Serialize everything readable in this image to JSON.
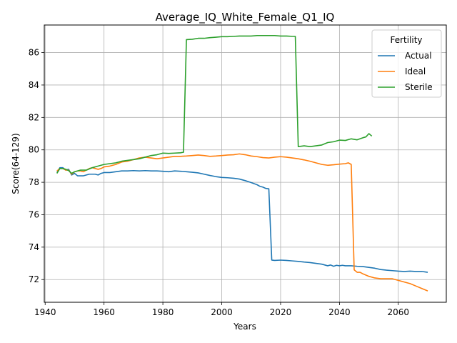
{
  "chart_data": {
    "type": "line",
    "title": "Average_IQ_White_Female_Q1_IQ",
    "xlabel": "Years",
    "ylabel": "Score(64-129)",
    "xlim": [
      1939.7,
      2076.3
    ],
    "ylim": [
      70.6,
      87.7
    ],
    "x_ticks": [
      1940,
      1960,
      1980,
      2000,
      2020,
      2040,
      2060
    ],
    "y_ticks": [
      72,
      74,
      76,
      78,
      80,
      82,
      84,
      86
    ],
    "grid": true,
    "legend": {
      "title": "Fertility",
      "placement": "top-right"
    },
    "series": [
      {
        "name": "Actual",
        "color": "#1f77b4",
        "points": [
          [
            1944,
            78.6
          ],
          [
            1945,
            78.9
          ],
          [
            1946,
            78.9
          ],
          [
            1947,
            78.75
          ],
          [
            1948,
            78.8
          ],
          [
            1949,
            78.45
          ],
          [
            1950,
            78.55
          ],
          [
            1951,
            78.4
          ],
          [
            1952,
            78.4
          ],
          [
            1953,
            78.4
          ],
          [
            1954,
            78.45
          ],
          [
            1955,
            78.5
          ],
          [
            1956,
            78.5
          ],
          [
            1957,
            78.5
          ],
          [
            1958,
            78.45
          ],
          [
            1959,
            78.55
          ],
          [
            1960,
            78.6
          ],
          [
            1962,
            78.6
          ],
          [
            1964,
            78.65
          ],
          [
            1966,
            78.7
          ],
          [
            1968,
            78.7
          ],
          [
            1970,
            78.72
          ],
          [
            1972,
            78.7
          ],
          [
            1974,
            78.72
          ],
          [
            1976,
            78.7
          ],
          [
            1978,
            78.7
          ],
          [
            1980,
            78.68
          ],
          [
            1982,
            78.65
          ],
          [
            1984,
            78.7
          ],
          [
            1986,
            78.68
          ],
          [
            1988,
            78.65
          ],
          [
            1990,
            78.62
          ],
          [
            1992,
            78.58
          ],
          [
            1994,
            78.5
          ],
          [
            1996,
            78.42
          ],
          [
            1998,
            78.35
          ],
          [
            2000,
            78.3
          ],
          [
            2002,
            78.28
          ],
          [
            2004,
            78.25
          ],
          [
            2006,
            78.2
          ],
          [
            2008,
            78.1
          ],
          [
            2010,
            77.98
          ],
          [
            2012,
            77.85
          ],
          [
            2013,
            77.75
          ],
          [
            2014,
            77.7
          ],
          [
            2015,
            77.62
          ],
          [
            2016,
            77.6
          ],
          [
            2017,
            73.2
          ],
          [
            2018,
            73.18
          ],
          [
            2020,
            73.2
          ],
          [
            2022,
            73.18
          ],
          [
            2024,
            73.15
          ],
          [
            2026,
            73.12
          ],
          [
            2028,
            73.08
          ],
          [
            2030,
            73.05
          ],
          [
            2032,
            73.0
          ],
          [
            2034,
            72.95
          ],
          [
            2035,
            72.9
          ],
          [
            2036,
            72.85
          ],
          [
            2037,
            72.9
          ],
          [
            2038,
            72.82
          ],
          [
            2039,
            72.88
          ],
          [
            2040,
            72.85
          ],
          [
            2041,
            72.88
          ],
          [
            2042,
            72.85
          ],
          [
            2044,
            72.85
          ],
          [
            2046,
            72.82
          ],
          [
            2048,
            72.8
          ],
          [
            2050,
            72.75
          ],
          [
            2052,
            72.7
          ],
          [
            2054,
            72.62
          ],
          [
            2056,
            72.58
          ],
          [
            2058,
            72.55
          ],
          [
            2060,
            72.52
          ],
          [
            2062,
            72.5
          ],
          [
            2064,
            72.52
          ],
          [
            2066,
            72.5
          ],
          [
            2068,
            72.5
          ],
          [
            2070,
            72.45
          ]
        ]
      },
      {
        "name": "Ideal",
        "color": "#ff7f0e",
        "points": [
          [
            1944,
            78.7
          ],
          [
            1945,
            78.85
          ],
          [
            1946,
            78.85
          ],
          [
            1947,
            78.75
          ],
          [
            1948,
            78.75
          ],
          [
            1949,
            78.5
          ],
          [
            1950,
            78.65
          ],
          [
            1951,
            78.7
          ],
          [
            1952,
            78.7
          ],
          [
            1953,
            78.65
          ],
          [
            1954,
            78.75
          ],
          [
            1955,
            78.85
          ],
          [
            1956,
            78.9
          ],
          [
            1957,
            78.85
          ],
          [
            1958,
            78.8
          ],
          [
            1959,
            78.85
          ],
          [
            1960,
            78.95
          ],
          [
            1962,
            79.0
          ],
          [
            1964,
            79.1
          ],
          [
            1966,
            79.25
          ],
          [
            1968,
            79.3
          ],
          [
            1970,
            79.4
          ],
          [
            1972,
            79.5
          ],
          [
            1974,
            79.55
          ],
          [
            1976,
            79.5
          ],
          [
            1978,
            79.45
          ],
          [
            1980,
            79.5
          ],
          [
            1982,
            79.55
          ],
          [
            1984,
            79.6
          ],
          [
            1986,
            79.6
          ],
          [
            1988,
            79.62
          ],
          [
            1990,
            79.65
          ],
          [
            1992,
            79.68
          ],
          [
            1994,
            79.65
          ],
          [
            1996,
            79.6
          ],
          [
            1998,
            79.62
          ],
          [
            2000,
            79.65
          ],
          [
            2002,
            79.68
          ],
          [
            2004,
            79.7
          ],
          [
            2006,
            79.75
          ],
          [
            2008,
            79.7
          ],
          [
            2010,
            79.62
          ],
          [
            2012,
            79.58
          ],
          [
            2014,
            79.52
          ],
          [
            2016,
            79.5
          ],
          [
            2018,
            79.55
          ],
          [
            2020,
            79.58
          ],
          [
            2022,
            79.55
          ],
          [
            2024,
            79.5
          ],
          [
            2026,
            79.45
          ],
          [
            2028,
            79.38
          ],
          [
            2030,
            79.3
          ],
          [
            2032,
            79.2
          ],
          [
            2034,
            79.1
          ],
          [
            2036,
            79.05
          ],
          [
            2038,
            79.08
          ],
          [
            2040,
            79.12
          ],
          [
            2042,
            79.15
          ],
          [
            2043,
            79.2
          ],
          [
            2044,
            79.1
          ],
          [
            2045,
            72.6
          ],
          [
            2046,
            72.45
          ],
          [
            2047,
            72.45
          ],
          [
            2048,
            72.35
          ],
          [
            2050,
            72.2
          ],
          [
            2052,
            72.1
          ],
          [
            2054,
            72.05
          ],
          [
            2056,
            72.05
          ],
          [
            2058,
            72.05
          ],
          [
            2060,
            71.95
          ],
          [
            2062,
            71.85
          ],
          [
            2064,
            71.75
          ],
          [
            2066,
            71.6
          ],
          [
            2068,
            71.45
          ],
          [
            2070,
            71.3
          ]
        ]
      },
      {
        "name": "Sterile",
        "color": "#2ca02c",
        "points": [
          [
            1944,
            78.55
          ],
          [
            1945,
            78.85
          ],
          [
            1946,
            78.85
          ],
          [
            1947,
            78.8
          ],
          [
            1948,
            78.72
          ],
          [
            1949,
            78.55
          ],
          [
            1950,
            78.65
          ],
          [
            1952,
            78.75
          ],
          [
            1954,
            78.75
          ],
          [
            1956,
            78.9
          ],
          [
            1958,
            79.0
          ],
          [
            1960,
            79.1
          ],
          [
            1962,
            79.15
          ],
          [
            1964,
            79.2
          ],
          [
            1966,
            79.3
          ],
          [
            1968,
            79.35
          ],
          [
            1970,
            79.4
          ],
          [
            1972,
            79.45
          ],
          [
            1974,
            79.55
          ],
          [
            1976,
            79.65
          ],
          [
            1978,
            79.7
          ],
          [
            1980,
            79.8
          ],
          [
            1982,
            79.78
          ],
          [
            1984,
            79.8
          ],
          [
            1986,
            79.82
          ],
          [
            1987,
            79.85
          ],
          [
            1988,
            86.8
          ],
          [
            1990,
            86.82
          ],
          [
            1992,
            86.88
          ],
          [
            1994,
            86.88
          ],
          [
            1996,
            86.92
          ],
          [
            1998,
            86.95
          ],
          [
            2000,
            86.98
          ],
          [
            2002,
            86.98
          ],
          [
            2004,
            87.0
          ],
          [
            2006,
            87.02
          ],
          [
            2008,
            87.02
          ],
          [
            2010,
            87.02
          ],
          [
            2012,
            87.05
          ],
          [
            2014,
            87.05
          ],
          [
            2016,
            87.05
          ],
          [
            2018,
            87.05
          ],
          [
            2020,
            87.02
          ],
          [
            2022,
            87.02
          ],
          [
            2024,
            87.0
          ],
          [
            2025,
            87.0
          ],
          [
            2026,
            80.2
          ],
          [
            2028,
            80.25
          ],
          [
            2030,
            80.2
          ],
          [
            2032,
            80.25
          ],
          [
            2034,
            80.3
          ],
          [
            2036,
            80.45
          ],
          [
            2038,
            80.5
          ],
          [
            2040,
            80.6
          ],
          [
            2042,
            80.58
          ],
          [
            2044,
            80.68
          ],
          [
            2046,
            80.62
          ],
          [
            2048,
            80.75
          ],
          [
            2049,
            80.8
          ],
          [
            2050,
            81.0
          ],
          [
            2051,
            80.85
          ]
        ]
      }
    ]
  }
}
